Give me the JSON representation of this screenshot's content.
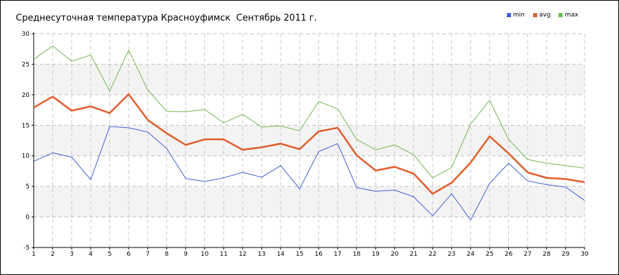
{
  "chart_data": {
    "type": "line",
    "title": "Среднесуточная температура Красноуфимск  Сентябрь 2011 г.",
    "xlabel": "",
    "ylabel": "",
    "x": [
      1,
      2,
      3,
      4,
      5,
      6,
      7,
      8,
      9,
      10,
      11,
      12,
      13,
      14,
      15,
      16,
      17,
      18,
      19,
      20,
      21,
      22,
      23,
      24,
      25,
      26,
      27,
      28,
      29,
      30
    ],
    "xlim": [
      1,
      30
    ],
    "ylim": [
      -5,
      30
    ],
    "yticks": [
      -5,
      0,
      5,
      10,
      15,
      20,
      25,
      30
    ],
    "grid": true,
    "legend_position": "top-right",
    "series": [
      {
        "name": "min",
        "color": "#3c5fd7",
        "values": [
          9.1,
          10.5,
          9.8,
          6.1,
          14.8,
          14.6,
          13.9,
          11.2,
          6.3,
          5.8,
          6.4,
          7.3,
          6.5,
          8.4,
          4.6,
          10.7,
          12.0,
          4.8,
          4.2,
          4.4,
          3.3,
          0.2,
          3.8,
          -0.5,
          5.5,
          8.8,
          5.9,
          5.3,
          4.9,
          2.7
        ]
      },
      {
        "name": "avg",
        "color": "#e0602e",
        "values": [
          17.9,
          19.7,
          17.4,
          18.1,
          17.0,
          20.1,
          15.9,
          13.7,
          11.8,
          12.7,
          12.7,
          11.0,
          11.4,
          12.0,
          11.1,
          14.0,
          14.6,
          10.1,
          7.6,
          8.2,
          7.1,
          3.8,
          5.6,
          8.9,
          13.2,
          10.4,
          7.3,
          6.4,
          6.2,
          5.7
        ]
      },
      {
        "name": "max",
        "color": "#6fb84e",
        "values": [
          25.8,
          28.0,
          25.5,
          26.5,
          20.6,
          27.3,
          20.8,
          17.3,
          17.2,
          17.6,
          15.4,
          16.8,
          14.7,
          14.9,
          14.1,
          18.9,
          17.7,
          12.7,
          11.0,
          11.8,
          10.2,
          6.4,
          8.1,
          15.2,
          19.1,
          12.7,
          9.4,
          8.8,
          8.4,
          8.0
        ]
      }
    ]
  }
}
